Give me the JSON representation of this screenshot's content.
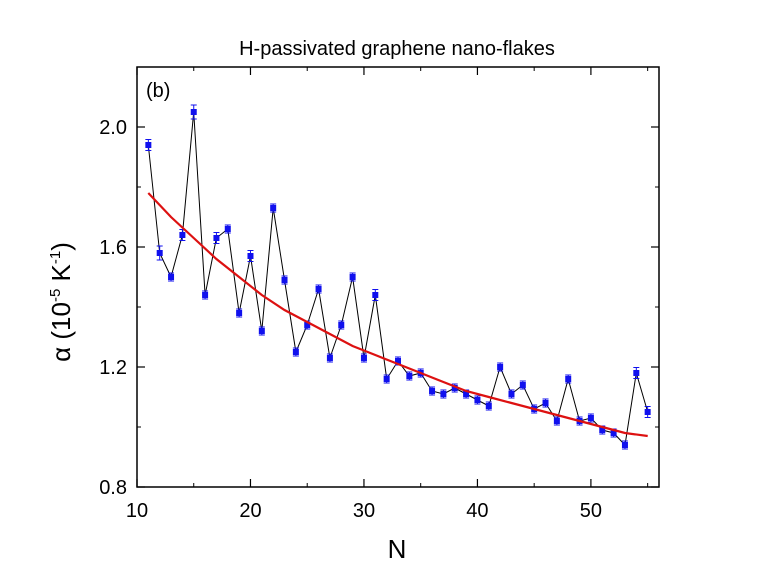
{
  "chart_data": {
    "type": "line",
    "title": "H-passivated graphene nano-flakes",
    "panel_label": "(b)",
    "xlabel": "N",
    "ylabel": "α (10",
    "ylabel_exp1": "-5",
    "ylabel_unit": " K",
    "ylabel_exp2": "-1",
    "ylabel_close": ")",
    "xlim": [
      10,
      56
    ],
    "ylim": [
      0.8,
      2.2
    ],
    "xticks": [
      10,
      20,
      30,
      40,
      50
    ],
    "xtick_labels": [
      "10",
      "20",
      "30",
      "40",
      "50"
    ],
    "yticks": [
      0.8,
      1.2,
      1.6,
      2.0
    ],
    "ytick_labels": [
      "0.8",
      "1.2",
      "1.6",
      "2.0"
    ],
    "grid": false,
    "series": [
      {
        "style": "markers+line",
        "marker_color": "#1010ee",
        "line_color": "#000000",
        "x": [
          11,
          12,
          13,
          14,
          15,
          16,
          17,
          18,
          19,
          20,
          21,
          22,
          23,
          24,
          25,
          26,
          27,
          28,
          29,
          30,
          31,
          32,
          33,
          34,
          35,
          36,
          37,
          38,
          39,
          40,
          41,
          42,
          43,
          44,
          45,
          46,
          47,
          48,
          49,
          50,
          51,
          52,
          53,
          54,
          55
        ],
        "y": [
          1.94,
          1.58,
          1.5,
          1.64,
          2.05,
          1.44,
          1.63,
          1.66,
          1.38,
          1.57,
          1.32,
          1.73,
          1.49,
          1.25,
          1.34,
          1.46,
          1.23,
          1.34,
          1.5,
          1.23,
          1.44,
          1.16,
          1.22,
          1.17,
          1.18,
          1.12,
          1.11,
          1.13,
          1.11,
          1.09,
          1.07,
          1.2,
          1.11,
          1.14,
          1.06,
          1.08,
          1.02,
          1.16,
          1.02,
          1.03,
          0.99,
          0.98,
          0.94,
          1.18,
          1.05
        ],
        "yerr": [
          0.015,
          0.02,
          0.01,
          0.015,
          0.02,
          0.01,
          0.015,
          0.01,
          0.01,
          0.015,
          0.01,
          0.01,
          0.01,
          0.01,
          0.01,
          0.01,
          0.01,
          0.01,
          0.01,
          0.01,
          0.015,
          0.01,
          0.01,
          0.01,
          0.01,
          0.01,
          0.01,
          0.01,
          0.01,
          0.01,
          0.01,
          0.01,
          0.01,
          0.01,
          0.01,
          0.01,
          0.01,
          0.01,
          0.01,
          0.01,
          0.01,
          0.01,
          0.01,
          0.015,
          0.015
        ]
      },
      {
        "style": "line",
        "line_color": "#dd1111",
        "x": [
          11,
          13,
          15,
          17,
          19,
          21,
          23,
          25,
          27,
          29,
          31,
          33,
          35,
          37,
          39,
          41,
          43,
          45,
          47,
          49,
          51,
          53,
          55
        ],
        "y": [
          1.78,
          1.7,
          1.63,
          1.56,
          1.5,
          1.44,
          1.39,
          1.35,
          1.31,
          1.27,
          1.24,
          1.21,
          1.18,
          1.15,
          1.12,
          1.1,
          1.08,
          1.06,
          1.04,
          1.02,
          1.0,
          0.98,
          0.97
        ]
      }
    ]
  }
}
